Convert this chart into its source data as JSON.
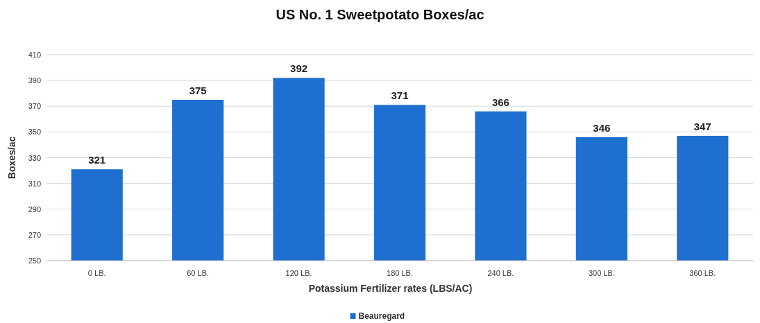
{
  "chart_data": {
    "type": "bar",
    "title": "US No. 1 Sweetpotato Boxes/ac",
    "xlabel": "Potassium Fertilizer rates (LBS/AC)",
    "ylabel": "Boxes/ac",
    "categories": [
      "0 LB.",
      "60 LB.",
      "120 LB.",
      "180 LB.",
      "240 LB.",
      "300 LB.",
      "360 LB."
    ],
    "series": [
      {
        "name": "Beauregard",
        "color": "#1f6fd0",
        "values": [
          321,
          375,
          392,
          371,
          366,
          346,
          347
        ]
      }
    ],
    "ylim": [
      250,
      410
    ],
    "yticks": [
      250,
      270,
      290,
      310,
      330,
      350,
      370,
      390,
      410
    ],
    "grid": "y",
    "legend": "bottom",
    "data_labels": true
  }
}
